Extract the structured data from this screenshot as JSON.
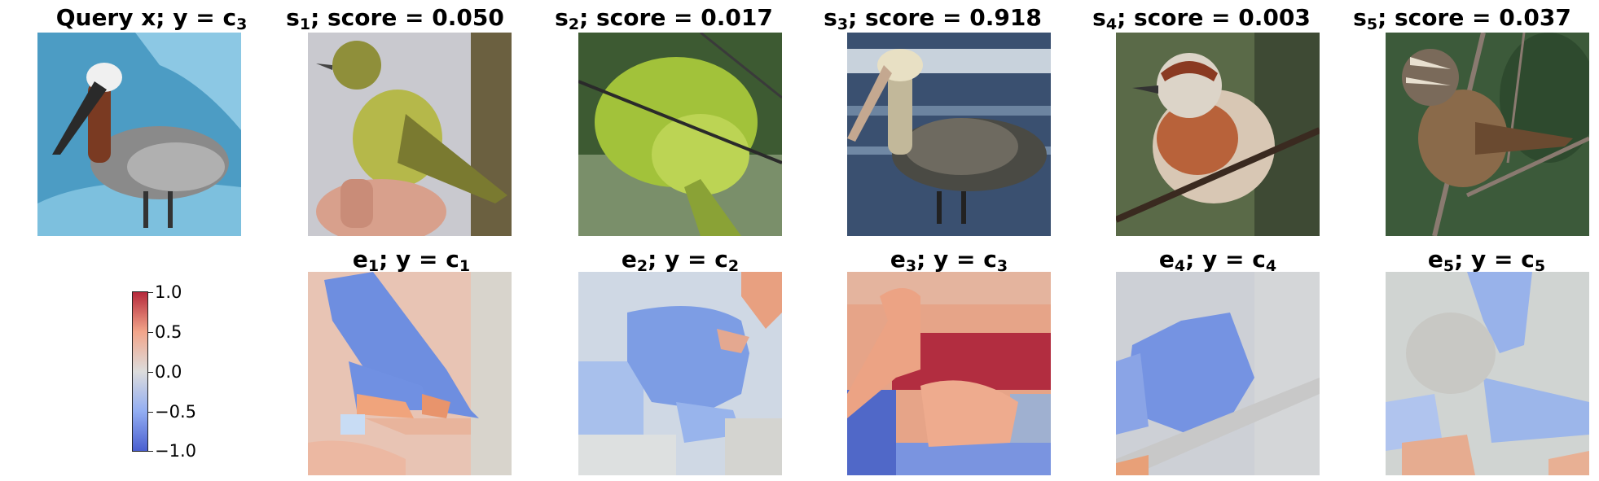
{
  "row_top": [
    {
      "pre": "Query x; y = c",
      "sub": "3",
      "post": ""
    },
    {
      "pre": "s",
      "sub": "1",
      "post": "; score = 0.050"
    },
    {
      "pre": "s",
      "sub": "2",
      "post": "; score = 0.017"
    },
    {
      "pre": "s",
      "sub": "3",
      "post": "; score = 0.918"
    },
    {
      "pre": "s",
      "sub": "4",
      "post": "; score = 0.003"
    },
    {
      "pre": "s",
      "sub": "5",
      "post": "; score = 0.037"
    }
  ],
  "row_bottom": [
    {
      "pre": "e",
      "sub": "1",
      "mid": "; y = c",
      "sub2": "1"
    },
    {
      "pre": "e",
      "sub": "2",
      "mid": "; y = c",
      "sub2": "2"
    },
    {
      "pre": "e",
      "sub": "3",
      "mid": "; y = c",
      "sub2": "3"
    },
    {
      "pre": "e",
      "sub": "4",
      "mid": "; y = c",
      "sub2": "4"
    },
    {
      "pre": "e",
      "sub": "5",
      "mid": "; y = c",
      "sub2": "5"
    }
  ],
  "colorbar": {
    "ticks": [
      "1.0",
      "0.5",
      "0.0",
      "−0.5",
      "−1.0"
    ],
    "colors": {
      "max": "#b5293b",
      "mid": "#dcdcdc",
      "min": "#4a5fd0"
    }
  }
}
